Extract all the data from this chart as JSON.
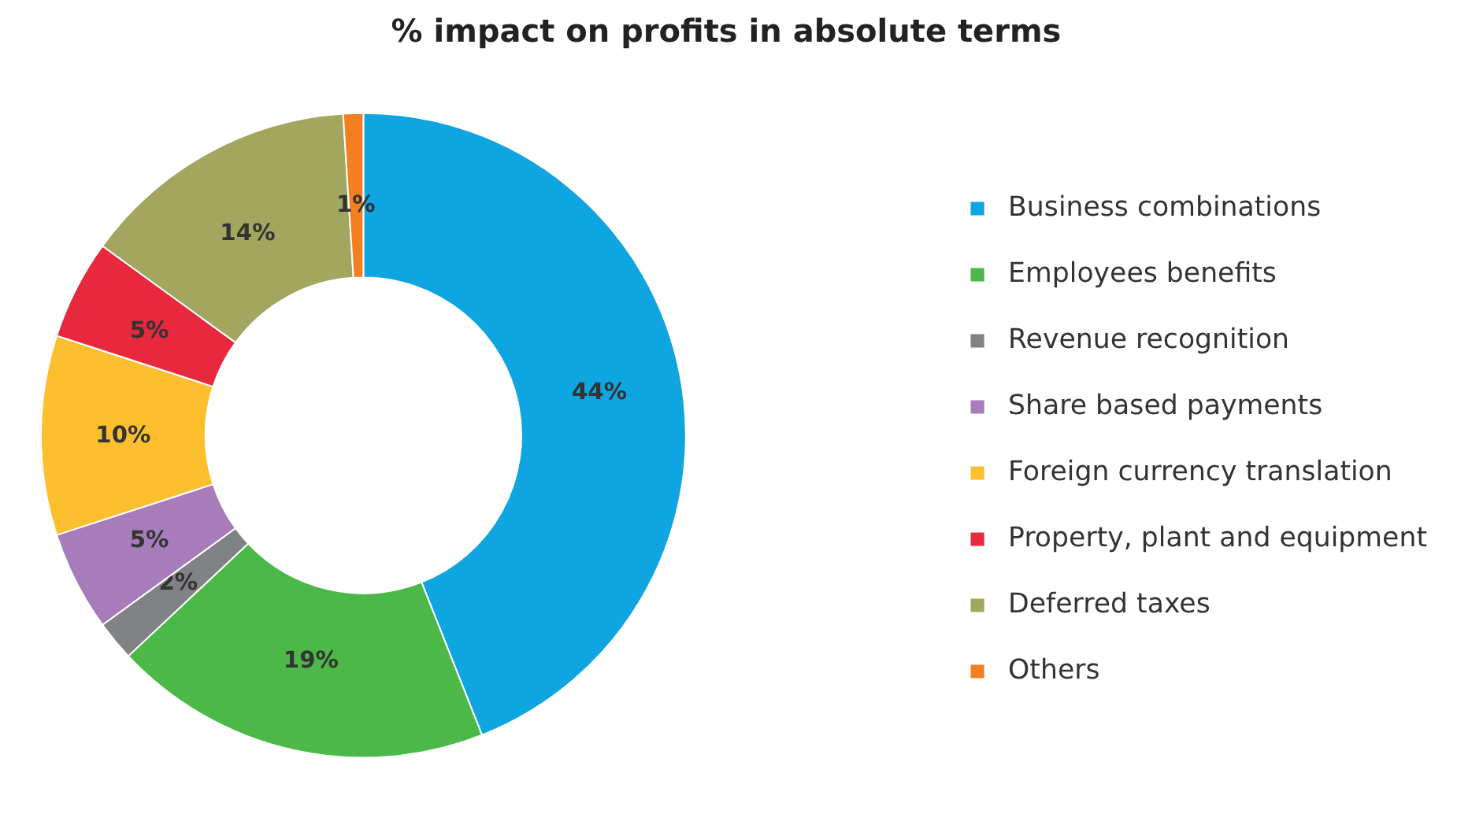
{
  "chart_data": {
    "type": "donut",
    "title": "% impact on profits in absolute terms",
    "categories": [
      "Business combinations",
      "Employees benefits",
      "Revenue recognition",
      "Share based payments",
      "Foreign currency translation",
      "Property, plant and equipment",
      "Deferred taxes",
      "Others"
    ],
    "values": [
      44,
      19,
      2,
      5,
      10,
      5,
      14,
      1
    ],
    "colors": [
      "#0ea5e0",
      "#4cb848",
      "#808285",
      "#a87bba",
      "#fdbf2d",
      "#e8283c",
      "#a3a65e",
      "#f47f20"
    ],
    "value_labels": [
      "44%",
      "19%",
      "2%",
      "5%",
      "10%",
      "5%",
      "14%",
      "1%"
    ],
    "legend": "right"
  }
}
